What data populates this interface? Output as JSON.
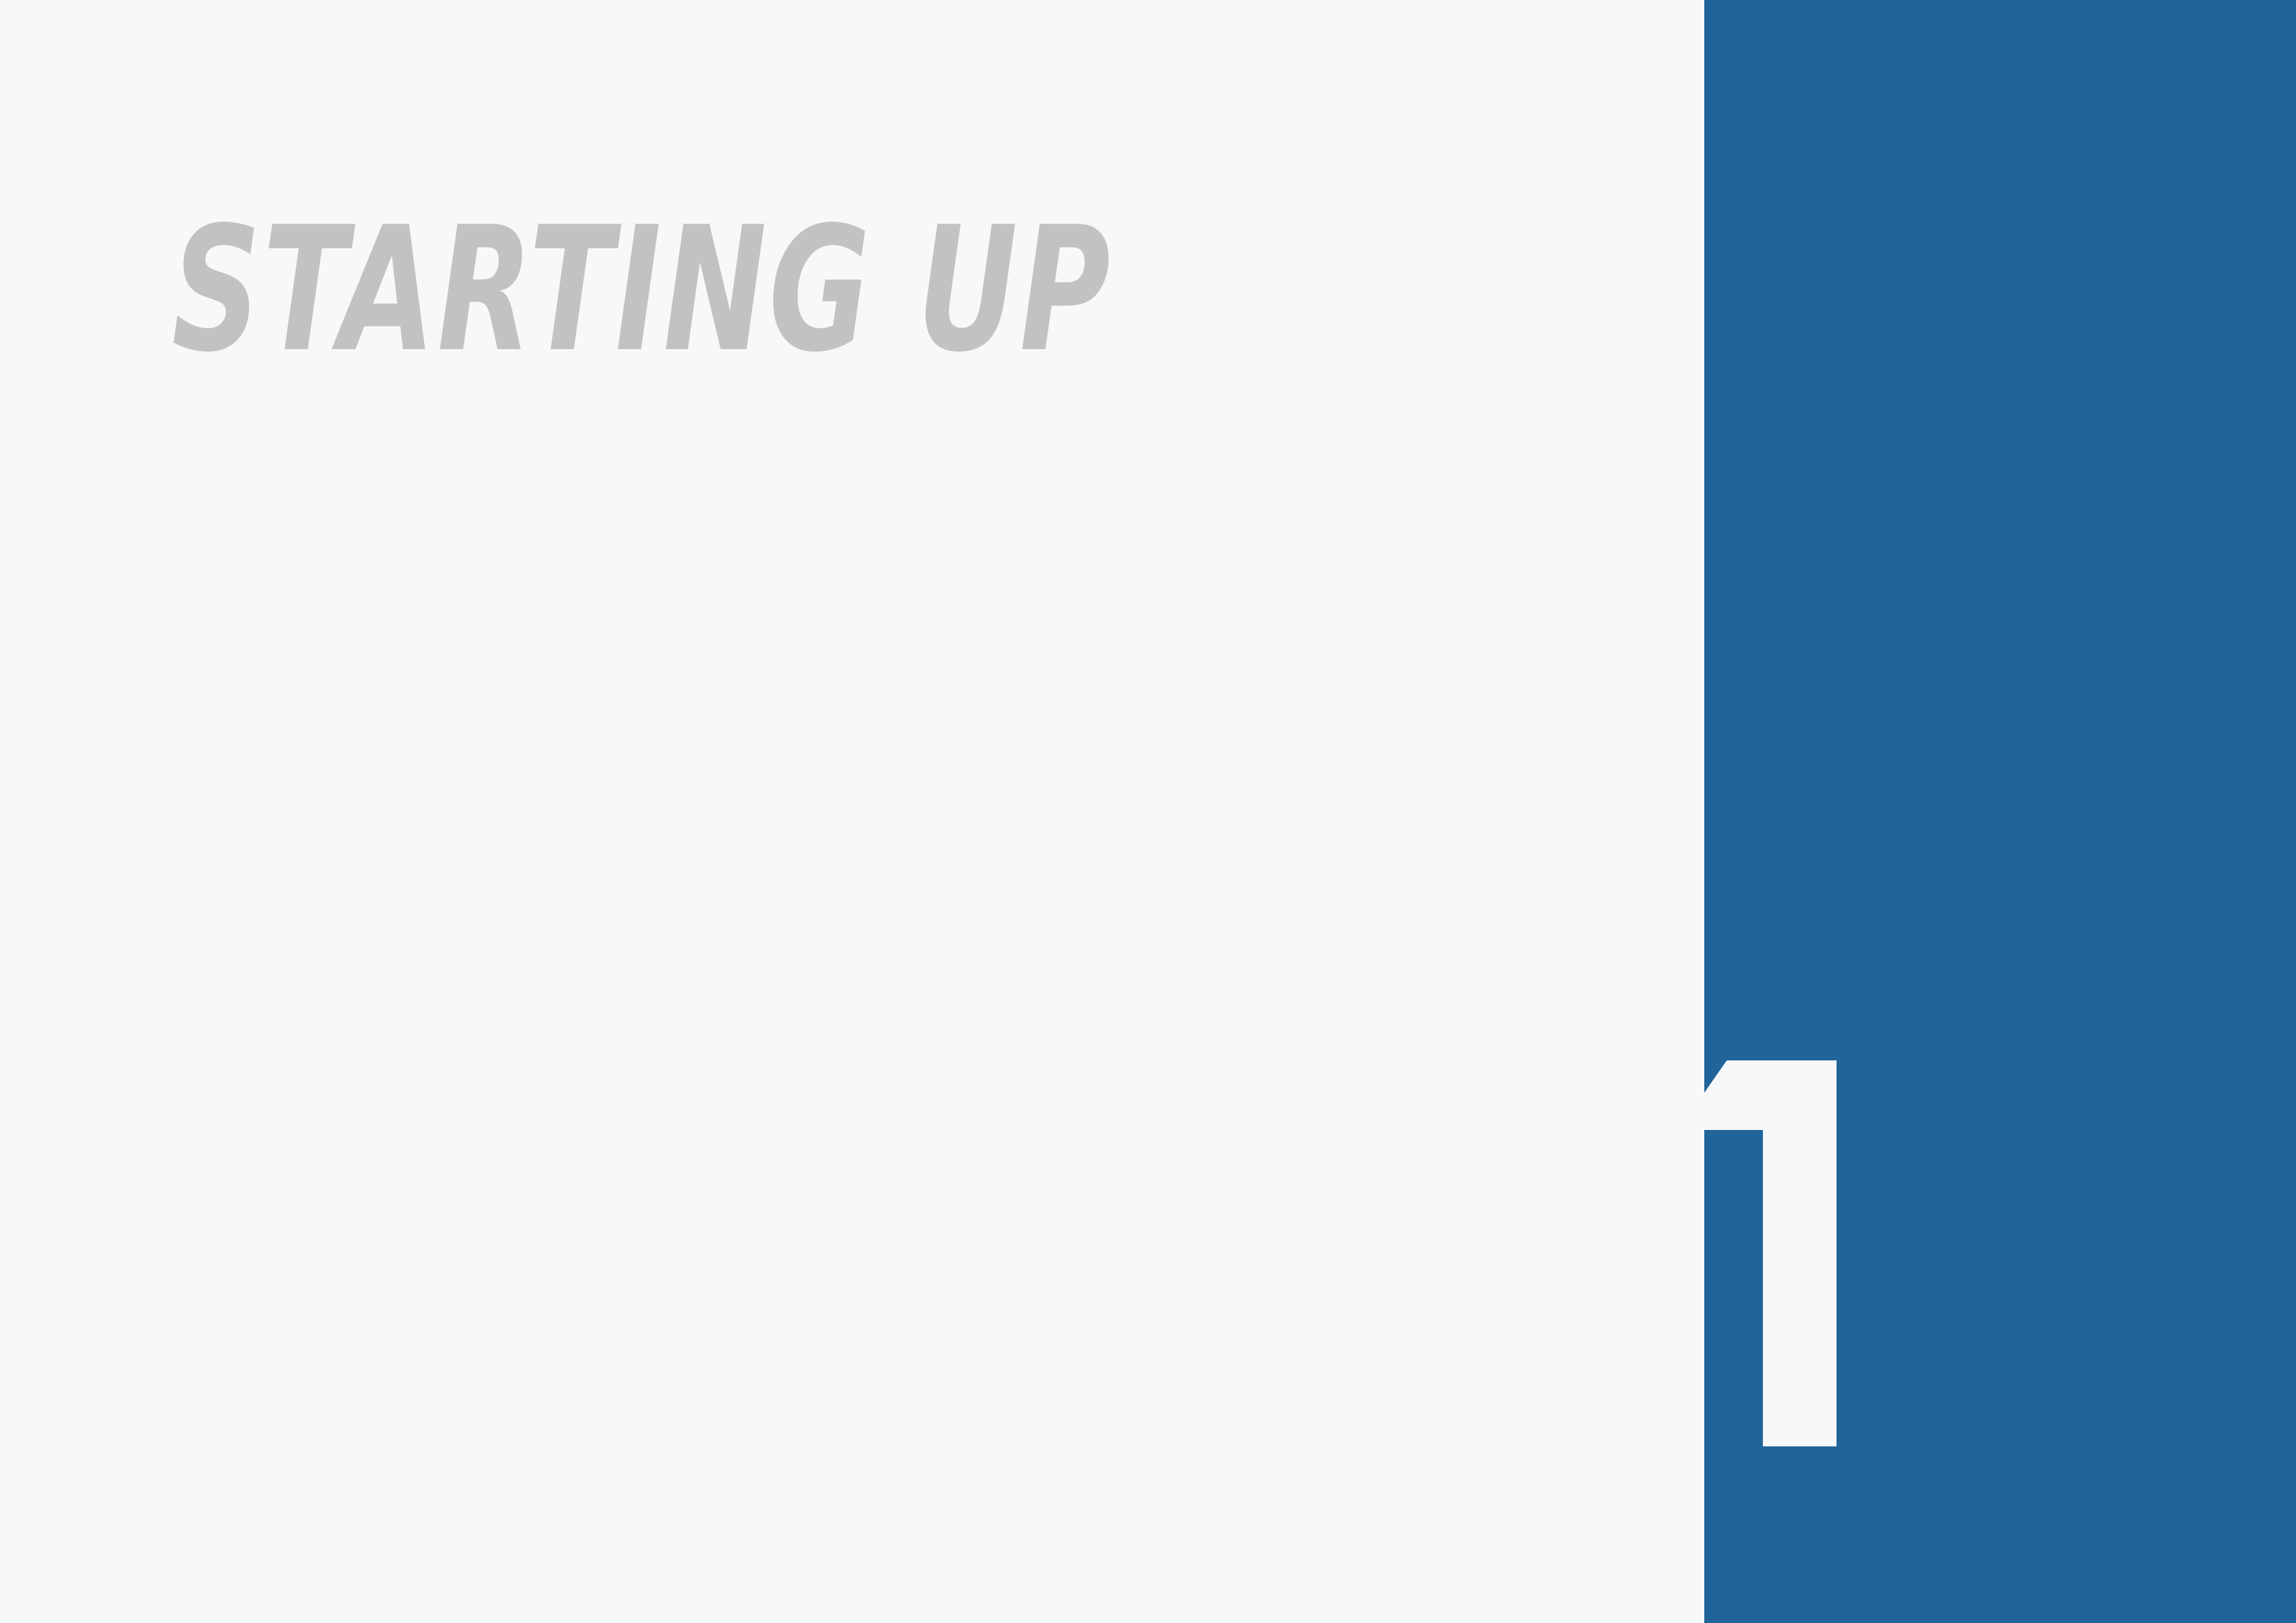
{
  "title": "STARTING UP",
  "chapter_number": "1",
  "colors": {
    "background": "#f7f8fa",
    "title_text": "#c2c2c2",
    "panel": "#216499",
    "number": "#f7f8fa"
  }
}
